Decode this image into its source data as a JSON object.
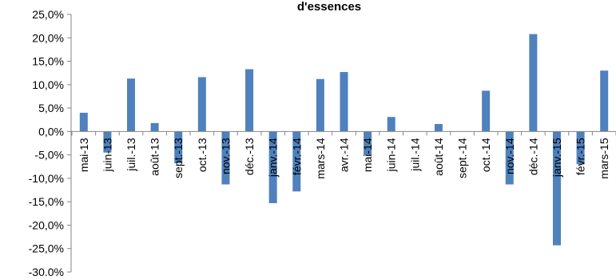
{
  "chart_data": {
    "type": "bar",
    "title": "d'essences",
    "categories": [
      "mai-13",
      "juin-13",
      "juil.-13",
      "août-13",
      "sept.-13",
      "oct.-13",
      "nov.-13",
      "déc.-13",
      "janv.-14",
      "févr.-14",
      "mars-14",
      "avr.-14",
      "mai-14",
      "juin-14",
      "juil.-14",
      "août-14",
      "sept.-14",
      "oct.-14",
      "nov.-14",
      "déc.-14",
      "janv.-15",
      "févr.-15",
      "mars-15"
    ],
    "values": [
      4.0,
      -4.5,
      11.3,
      1.8,
      -6.8,
      11.6,
      -11.3,
      13.3,
      -15.3,
      -12.8,
      11.2,
      12.7,
      -5.0,
      3.1,
      0.0,
      1.6,
      0.0,
      8.7,
      -11.3,
      20.8,
      -24.3,
      -7.0,
      13.0
    ],
    "ylim": [
      -30,
      25
    ],
    "yticks": [
      "25,0%",
      "20,0%",
      "15,0%",
      "10,0%",
      "5,0%",
      "0,0%",
      "-5,0%",
      "-10,0%",
      "-15,0%",
      "-20,0%",
      "-25,0%",
      "-30,0%"
    ],
    "ytick_values": [
      25,
      20,
      15,
      10,
      5,
      0,
      -5,
      -10,
      -15,
      -20,
      -25,
      -30
    ],
    "bar_color": "#4f81bd",
    "grid": false,
    "legend": "none"
  }
}
